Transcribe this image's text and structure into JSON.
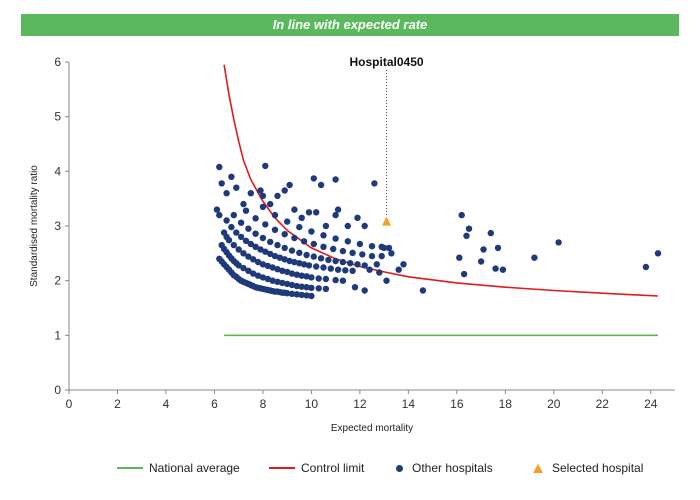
{
  "banner": {
    "text": "In line with expected rate",
    "color": "#5cb85c"
  },
  "chart_data": {
    "type": "scatter",
    "title": "",
    "xlabel": "Expected mortality",
    "ylabel": "Standardised mortality ratio",
    "xlim": [
      0,
      25
    ],
    "ylim": [
      0,
      6
    ],
    "xticks": [
      0,
      2,
      4,
      6,
      8,
      10,
      12,
      14,
      16,
      18,
      20,
      22,
      24
    ],
    "yticks": [
      0,
      1,
      2,
      3,
      4,
      5,
      6
    ],
    "grid": false,
    "legend_position": "bottom",
    "annotation": {
      "text": "Hospital0450",
      "x": 13.1,
      "y": 3.08
    },
    "series": [
      {
        "name": "National average",
        "kind": "line",
        "color": "#5cb85c",
        "x": [
          6.4,
          24.3
        ],
        "y": [
          1.0,
          1.0
        ]
      },
      {
        "name": "Control limit",
        "kind": "line",
        "color": "#e31a1c",
        "x": [
          6.4,
          6.6,
          6.8,
          7.0,
          7.2,
          7.5,
          8.0,
          8.5,
          9.0,
          10.0,
          11.0,
          12.0,
          13.0,
          14.0,
          16.0,
          18.0,
          20.0,
          22.0,
          24.3
        ],
        "y": [
          5.95,
          5.4,
          4.95,
          4.55,
          4.2,
          3.85,
          3.45,
          3.15,
          2.92,
          2.6,
          2.4,
          2.26,
          2.16,
          2.07,
          1.96,
          1.88,
          1.82,
          1.77,
          1.72
        ]
      },
      {
        "name": "Other hospitals",
        "kind": "scatter",
        "color": "#1f3a7a",
        "points": [
          [
            6.2,
            2.4
          ],
          [
            6.3,
            2.35
          ],
          [
            6.4,
            2.3
          ],
          [
            6.5,
            2.25
          ],
          [
            6.6,
            2.2
          ],
          [
            6.7,
            2.15
          ],
          [
            6.8,
            2.1
          ],
          [
            6.9,
            2.07
          ],
          [
            7.0,
            2.03
          ],
          [
            7.1,
            2.0
          ],
          [
            7.2,
            1.98
          ],
          [
            7.3,
            1.96
          ],
          [
            7.4,
            1.94
          ],
          [
            7.5,
            1.92
          ],
          [
            7.6,
            1.9
          ],
          [
            7.7,
            1.88
          ],
          [
            7.8,
            1.87
          ],
          [
            7.9,
            1.86
          ],
          [
            8.0,
            1.85
          ],
          [
            8.1,
            1.84
          ],
          [
            8.2,
            1.83
          ],
          [
            8.3,
            1.82
          ],
          [
            8.4,
            1.81
          ],
          [
            8.5,
            1.8
          ],
          [
            8.6,
            1.8
          ],
          [
            8.7,
            1.79
          ],
          [
            8.8,
            1.78
          ],
          [
            8.9,
            1.78
          ],
          [
            9.0,
            1.77
          ],
          [
            9.2,
            1.76
          ],
          [
            9.4,
            1.75
          ],
          [
            9.6,
            1.74
          ],
          [
            9.8,
            1.73
          ],
          [
            10.0,
            1.72
          ],
          [
            6.3,
            2.65
          ],
          [
            6.4,
            2.58
          ],
          [
            6.5,
            2.52
          ],
          [
            6.6,
            2.46
          ],
          [
            6.7,
            2.41
          ],
          [
            6.8,
            2.36
          ],
          [
            6.9,
            2.32
          ],
          [
            7.0,
            2.28
          ],
          [
            7.2,
            2.23
          ],
          [
            7.4,
            2.18
          ],
          [
            7.6,
            2.13
          ],
          [
            7.8,
            2.09
          ],
          [
            8.0,
            2.06
          ],
          [
            8.2,
            2.03
          ],
          [
            8.4,
            2.0
          ],
          [
            8.6,
            1.98
          ],
          [
            8.8,
            1.96
          ],
          [
            9.0,
            1.94
          ],
          [
            9.2,
            1.92
          ],
          [
            9.4,
            1.9
          ],
          [
            9.6,
            1.89
          ],
          [
            9.8,
            1.88
          ],
          [
            10.0,
            1.87
          ],
          [
            10.3,
            1.86
          ],
          [
            10.6,
            1.85
          ],
          [
            6.4,
            2.88
          ],
          [
            6.5,
            2.8
          ],
          [
            6.6,
            2.74
          ],
          [
            6.8,
            2.65
          ],
          [
            7.0,
            2.57
          ],
          [
            7.2,
            2.5
          ],
          [
            7.4,
            2.44
          ],
          [
            7.6,
            2.39
          ],
          [
            7.8,
            2.34
          ],
          [
            8.0,
            2.3
          ],
          [
            8.2,
            2.27
          ],
          [
            8.4,
            2.24
          ],
          [
            8.6,
            2.21
          ],
          [
            8.8,
            2.18
          ],
          [
            9.0,
            2.16
          ],
          [
            9.2,
            2.13
          ],
          [
            9.4,
            2.11
          ],
          [
            9.6,
            2.09
          ],
          [
            9.8,
            2.08
          ],
          [
            10.0,
            2.06
          ],
          [
            10.3,
            2.04
          ],
          [
            10.6,
            2.03
          ],
          [
            11.0,
            2.01
          ],
          [
            11.3,
            2.0
          ],
          [
            6.5,
            3.1
          ],
          [
            6.7,
            2.98
          ],
          [
            6.9,
            2.88
          ],
          [
            7.1,
            2.8
          ],
          [
            7.3,
            2.73
          ],
          [
            7.5,
            2.67
          ],
          [
            7.7,
            2.62
          ],
          [
            7.9,
            2.57
          ],
          [
            8.1,
            2.53
          ],
          [
            8.3,
            2.49
          ],
          [
            8.5,
            2.45
          ],
          [
            8.7,
            2.42
          ],
          [
            8.9,
            2.39
          ],
          [
            9.1,
            2.36
          ],
          [
            9.3,
            2.34
          ],
          [
            9.5,
            2.32
          ],
          [
            9.7,
            2.3
          ],
          [
            9.9,
            2.28
          ],
          [
            10.2,
            2.26
          ],
          [
            10.5,
            2.24
          ],
          [
            10.8,
            2.22
          ],
          [
            11.1,
            2.2
          ],
          [
            11.4,
            2.19
          ],
          [
            11.7,
            2.18
          ],
          [
            6.8,
            3.2
          ],
          [
            7.1,
            3.06
          ],
          [
            7.4,
            2.95
          ],
          [
            7.7,
            2.86
          ],
          [
            8.0,
            2.78
          ],
          [
            8.3,
            2.71
          ],
          [
            8.6,
            2.65
          ],
          [
            8.9,
            2.6
          ],
          [
            9.2,
            2.55
          ],
          [
            9.5,
            2.51
          ],
          [
            9.8,
            2.47
          ],
          [
            10.1,
            2.44
          ],
          [
            10.4,
            2.41
          ],
          [
            10.7,
            2.38
          ],
          [
            11.0,
            2.36
          ],
          [
            11.3,
            2.34
          ],
          [
            11.6,
            2.32
          ],
          [
            11.9,
            2.3
          ],
          [
            12.2,
            2.28
          ],
          [
            7.3,
            3.28
          ],
          [
            7.7,
            3.14
          ],
          [
            8.1,
            3.03
          ],
          [
            8.5,
            2.93
          ],
          [
            8.9,
            2.85
          ],
          [
            9.3,
            2.78
          ],
          [
            9.7,
            2.72
          ],
          [
            10.1,
            2.67
          ],
          [
            10.5,
            2.62
          ],
          [
            10.9,
            2.58
          ],
          [
            11.3,
            2.54
          ],
          [
            11.7,
            2.51
          ],
          [
            12.1,
            2.48
          ],
          [
            12.5,
            2.45
          ],
          [
            8.0,
            3.35
          ],
          [
            8.5,
            3.2
          ],
          [
            9.0,
            3.08
          ],
          [
            9.5,
            2.98
          ],
          [
            10.0,
            2.9
          ],
          [
            10.5,
            2.83
          ],
          [
            11.0,
            2.77
          ],
          [
            11.5,
            2.72
          ],
          [
            12.0,
            2.67
          ],
          [
            12.5,
            2.63
          ],
          [
            13.0,
            2.6
          ],
          [
            6.1,
            3.3
          ],
          [
            6.2,
            3.2
          ],
          [
            6.5,
            3.6
          ],
          [
            6.7,
            3.9
          ],
          [
            6.9,
            3.7
          ],
          [
            7.2,
            3.4
          ],
          [
            7.5,
            3.6
          ],
          [
            7.9,
            3.65
          ],
          [
            8.0,
            3.55
          ],
          [
            8.3,
            3.4
          ],
          [
            8.6,
            3.55
          ],
          [
            8.9,
            3.65
          ],
          [
            9.1,
            3.75
          ],
          [
            9.3,
            3.3
          ],
          [
            9.6,
            3.15
          ],
          [
            9.9,
            3.25
          ],
          [
            10.2,
            3.25
          ],
          [
            10.6,
            3.0
          ],
          [
            11.0,
            3.2
          ],
          [
            11.1,
            3.3
          ],
          [
            11.5,
            3.0
          ],
          [
            11.9,
            3.15
          ],
          [
            12.2,
            3.0
          ],
          [
            6.2,
            4.08
          ],
          [
            6.3,
            3.78
          ],
          [
            8.1,
            4.1
          ],
          [
            10.1,
            3.87
          ],
          [
            10.4,
            3.75
          ],
          [
            11.0,
            3.85
          ],
          [
            12.6,
            3.78
          ],
          [
            11.8,
            1.88
          ],
          [
            12.2,
            1.82
          ],
          [
            12.8,
            2.15
          ],
          [
            13.1,
            2.0
          ],
          [
            13.3,
            2.5
          ],
          [
            13.6,
            2.2
          ],
          [
            13.8,
            2.3
          ],
          [
            14.6,
            1.82
          ],
          [
            12.9,
            2.62
          ],
          [
            13.2,
            2.6
          ],
          [
            12.4,
            2.2
          ],
          [
            12.7,
            2.3
          ],
          [
            12.9,
            2.45
          ],
          [
            16.2,
            3.2
          ],
          [
            16.5,
            2.95
          ],
          [
            16.4,
            2.82
          ],
          [
            16.1,
            2.42
          ],
          [
            16.3,
            2.12
          ],
          [
            17.1,
            2.57
          ],
          [
            17.4,
            2.87
          ],
          [
            17.0,
            2.35
          ],
          [
            17.7,
            2.6
          ],
          [
            17.6,
            2.22
          ],
          [
            17.9,
            2.2
          ],
          [
            19.2,
            2.42
          ],
          [
            20.2,
            2.7
          ],
          [
            23.8,
            2.25
          ],
          [
            24.3,
            2.5
          ]
        ]
      },
      {
        "name": "Selected hospital",
        "kind": "scatter",
        "color": "#f4a024",
        "points": [
          [
            13.1,
            3.08
          ]
        ]
      }
    ]
  }
}
